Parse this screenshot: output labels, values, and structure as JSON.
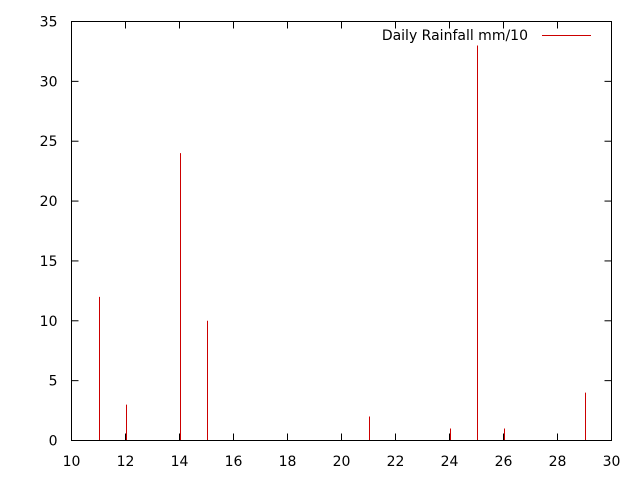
{
  "chart_data": {
    "type": "bar",
    "style": "impulses",
    "title": "",
    "xlabel": "",
    "ylabel": "",
    "xlim": [
      10,
      30
    ],
    "ylim": [
      0,
      35
    ],
    "xticks": [
      "10",
      "12",
      "14",
      "16",
      "18",
      "20",
      "22",
      "24",
      "26",
      "28",
      "30"
    ],
    "yticks": [
      "0",
      "5",
      "10",
      "15",
      "20",
      "25",
      "30",
      "35"
    ],
    "grid": false,
    "legend_position": "top-right",
    "series": [
      {
        "name": "Daily Rainfall mm/10",
        "color": "#cc0000",
        "points": [
          {
            "x": 11,
            "y": 12
          },
          {
            "x": 12,
            "y": 3
          },
          {
            "x": 14,
            "y": 24
          },
          {
            "x": 15,
            "y": 10
          },
          {
            "x": 21,
            "y": 2
          },
          {
            "x": 24,
            "y": 1
          },
          {
            "x": 25,
            "y": 33
          },
          {
            "x": 26,
            "y": 1
          },
          {
            "x": 29,
            "y": 4
          }
        ]
      }
    ]
  }
}
